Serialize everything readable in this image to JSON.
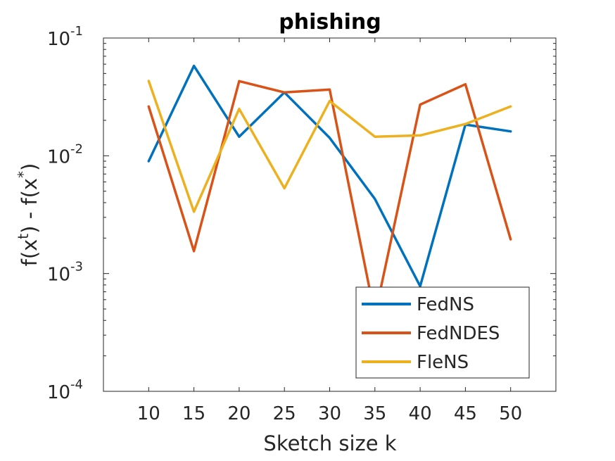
{
  "chart_data": {
    "type": "line",
    "title": "phishing",
    "xlabel": "Sketch size k",
    "ylabel": {
      "base": "f(x",
      "sup1": "t",
      "mid": ") - f(x",
      "sup2": "*",
      "end": ")"
    },
    "yscale": "log",
    "xlim": [
      5,
      55
    ],
    "ylim": [
      0.0001,
      0.1
    ],
    "x": [
      10,
      15,
      20,
      25,
      30,
      35,
      40,
      45,
      50
    ],
    "xticks": [
      "10",
      "15",
      "20",
      "25",
      "30",
      "35",
      "40",
      "45",
      "50"
    ],
    "yticks": [
      {
        "value": 0.1,
        "base": "10",
        "exp": "-1"
      },
      {
        "value": 0.01,
        "base": "10",
        "exp": "-2"
      },
      {
        "value": 0.001,
        "base": "10",
        "exp": "-3"
      },
      {
        "value": 0.0001,
        "base": "10",
        "exp": "-4"
      }
    ],
    "legend_position": "bottom-right",
    "series": [
      {
        "name": "FedNS",
        "color": "#0072BD",
        "values": [
          0.009,
          0.058,
          0.0145,
          0.0345,
          0.0142,
          0.0043,
          0.00078,
          0.0184,
          0.0161
        ]
      },
      {
        "name": "FedNDES",
        "color": "#D95319",
        "values": [
          0.0262,
          0.00155,
          0.043,
          0.0345,
          0.0365,
          0.00044,
          0.0272,
          0.0405,
          0.00195
        ]
      },
      {
        "name": "FleNS",
        "color": "#EDB120",
        "values": [
          0.0432,
          0.00335,
          0.025,
          0.0053,
          0.0292,
          0.0145,
          0.0149,
          0.0186,
          0.0262
        ]
      }
    ]
  }
}
